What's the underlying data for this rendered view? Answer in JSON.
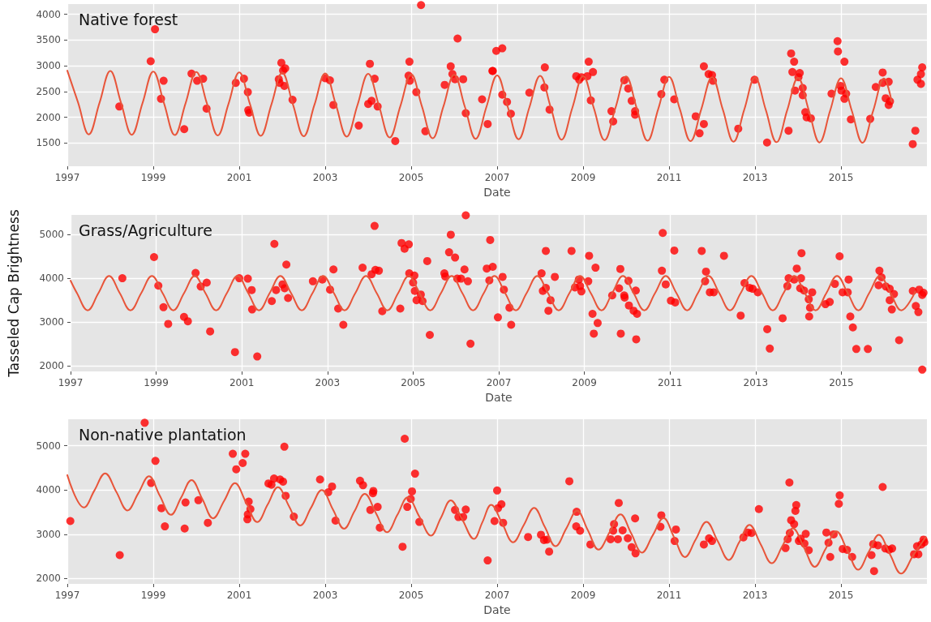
{
  "chart_data": [
    {
      "type": "scatter",
      "title": "Native forest",
      "xlabel": "Date",
      "xlim": [
        1997,
        2017
      ],
      "xticks": [
        1997,
        1999,
        2001,
        2003,
        2005,
        2007,
        2009,
        2011,
        2013,
        2015
      ],
      "ylim": [
        1050,
        4200
      ],
      "yticks": [
        1500,
        2000,
        2500,
        3000,
        3500,
        4000
      ],
      "grid": true,
      "series": [
        {
          "marker": "circle",
          "color": "#ff0000",
          "x": [
            1998.21,
            1998.94,
            1999.04,
            1999.24,
            1999.18,
            1999.72,
            1999.89,
            2000.02,
            2000.16,
            2000.24,
            2000.92,
            2001.11,
            2001.2,
            2001.21,
            2001.23,
            2001.92,
            2001.94,
            2001.98,
            2002.02,
            2002.07,
            2002.05,
            2002.24,
            2003.0,
            2003.11,
            2003.19,
            2003.78,
            2004.0,
            2004.08,
            2004.04,
            2004.15,
            2004.22,
            2004.63,
            2004.96,
            2004.94,
            2004.97,
            2005.12,
            2005.23,
            2005.33,
            2005.78,
            2005.92,
            2005.96,
            2006.02,
            2006.08,
            2006.21,
            2006.27,
            2006.65,
            2006.78,
            2006.89,
            2006.98,
            2007.12,
            2006.9,
            2007.12,
            2007.23,
            2007.32,
            2007.75,
            2008.11,
            2008.1,
            2008.22,
            2008.84,
            2008.91,
            2008.96,
            2009.1,
            2009.13,
            2009.23,
            2009.18,
            2009.66,
            2009.7,
            2009.96,
            2010.05,
            2010.13,
            2010.21,
            2010.21,
            2010.82,
            2010.89,
            2011.12,
            2011.62,
            2011.71,
            2011.81,
            2011.81,
            2011.92,
            2012.0,
            2012.02,
            2012.61,
            2012.99,
            2013.28,
            2013.78,
            2013.84,
            2013.91,
            2013.87,
            2014.04,
            2014.01,
            2013.93,
            2014.11,
            2014.11,
            2014.17,
            2014.2,
            2014.3,
            2014.92,
            2014.93,
            2015.08,
            2014.78,
            2014.99,
            2015.01,
            2015.12,
            2015.08,
            2015.23,
            2015.68,
            2015.81,
            2015.97,
            2015.97,
            2016.11,
            2016.04,
            2016.14,
            2016.11,
            2016.73,
            2016.67,
            2016.78,
            2016.86,
            2016.86,
            2016.89
          ],
          "values": [
            2210,
            3090,
            3710,
            2710,
            2360,
            1770,
            2850,
            2710,
            2750,
            2170,
            2670,
            2750,
            2490,
            2140,
            2090,
            2740,
            2670,
            3060,
            2910,
            2950,
            2610,
            2340,
            2760,
            2720,
            2240,
            1840,
            2260,
            2320,
            3040,
            2750,
            2210,
            1540,
            3080,
            2810,
            2710,
            2490,
            4180,
            1730,
            2630,
            2990,
            2840,
            2740,
            3530,
            2740,
            2080,
            2350,
            1870,
            2900,
            3290,
            3340,
            2900,
            2440,
            2300,
            2070,
            2480,
            2970,
            2580,
            2150,
            2800,
            2730,
            2780,
            2800,
            3080,
            2880,
            2330,
            2120,
            1920,
            2720,
            2560,
            2320,
            2120,
            2050,
            2450,
            2730,
            2350,
            2020,
            1690,
            1870,
            2990,
            2840,
            2820,
            2710,
            1780,
            2730,
            1510,
            1740,
            3240,
            3080,
            2880,
            2860,
            2780,
            2520,
            2570,
            2430,
            2100,
            2000,
            1980,
            3480,
            3280,
            3080,
            2460,
            2610,
            2520,
            2460,
            2360,
            1960,
            1970,
            2590,
            2870,
            2670,
            2690,
            2370,
            2310,
            2240,
            1740,
            1480,
            2730,
            2840,
            2650,
            2970
          ]
        },
        {
          "type": "line",
          "marker": "none",
          "line_style": "solid",
          "color": "#e8553a",
          "x": [
            1997,
            1997.25,
            1997.5,
            1997.75,
            1998,
            1998.25,
            1998.5,
            1998.75,
            1999,
            1999.25,
            1999.5,
            1999.75,
            2000,
            2000.25,
            2000.5,
            2000.75,
            2001,
            2001.25,
            2001.5,
            2001.75,
            2002,
            2002.25,
            2002.5,
            2002.75,
            2003,
            2003.25,
            2003.5,
            2003.75,
            2004,
            2004.25,
            2004.5,
            2004.75,
            2005,
            2005.25,
            2005.5,
            2005.75,
            2006,
            2006.25,
            2006.5,
            2006.75,
            2007,
            2007.25,
            2007.5,
            2007.75,
            2008,
            2008.25,
            2008.5,
            2008.75,
            2009,
            2009.25,
            2009.5,
            2009.75,
            2010,
            2010.25,
            2010.5,
            2010.75,
            2011,
            2011.25,
            2011.5,
            2011.75,
            2012,
            2012.25,
            2012.5,
            2012.75,
            2013,
            2013.25,
            2013.5,
            2013.75,
            2014,
            2014.25,
            2014.5,
            2014.75,
            2015,
            2015.25,
            2015.5,
            2015.75,
            2016,
            2016.18
          ],
          "values": [
            2907,
            2289,
            1670,
            2285,
            2900,
            2281,
            1662,
            2276,
            2890,
            2273,
            1655,
            2269,
            2882,
            2265,
            1648,
            2261,
            2874,
            2257,
            1640,
            2253,
            2865,
            2249,
            1632,
            2244,
            2855,
            2240,
            1625,
            2235,
            2845,
            2227,
            1608,
            2222,
            2835,
            2214,
            1592,
            2209,
            2825,
            2204,
            1583,
            2199,
            2815,
            2195,
            1575,
            2192,
            2808,
            2187,
            1566,
            2184,
            2801,
            2179,
            1557,
            2176,
            2794,
            2171,
            1547,
            2167,
            2787,
            2162,
            1537,
            2159,
            2780,
            2154,
            1527,
            2151,
            2774,
            2146,
            1517,
            2142,
            2767,
            2140,
            1512,
            2136,
            2760,
            2133,
            1506,
            2131,
            2755,
            2300
          ]
        }
      ]
    },
    {
      "type": "scatter",
      "title": "Grass/Agriculture",
      "xlabel": "Date",
      "ylabel": "Tasseled Cap Brightness",
      "xlim": [
        1997,
        2017
      ],
      "xticks": [
        1997,
        1999,
        2001,
        2003,
        2005,
        2007,
        2009,
        2011,
        2013,
        2015
      ],
      "ylim": [
        1880,
        5440
      ],
      "yticks": [
        2000,
        3000,
        4000,
        5000
      ],
      "grid": true,
      "series": [
        {
          "marker": "circle",
          "color": "#ff0000",
          "x": [
            1998.21,
            1998.95,
            1999.05,
            1999.17,
            1999.28,
            1999.65,
            1999.74,
            1999.92,
            2000.04,
            2000.18,
            2000.26,
            2000.84,
            2000.94,
            2001.14,
            2001.23,
            2001.24,
            2001.36,
            2001.7,
            2001.76,
            2001.8,
            2001.95,
            2002.0,
            2002.04,
            2002.08,
            2002.66,
            2002.88,
            2003.06,
            2003.14,
            2003.25,
            2003.37,
            2003.82,
            2004.03,
            2004.1,
            2004.12,
            2004.2,
            2004.28,
            2004.7,
            2004.73,
            2004.8,
            2004.9,
            2004.91,
            2005.03,
            2005.0,
            2005.04,
            2005.08,
            2005.18,
            2005.22,
            2005.33,
            2005.39,
            2005.73,
            2005.75,
            2005.84,
            2005.88,
            2005.98,
            2006.03,
            2006.12,
            2006.2,
            2006.23,
            2006.28,
            2006.34,
            2006.72,
            2006.8,
            2006.86,
            2006.78,
            2006.98,
            2007.09,
            2007.12,
            2007.25,
            2007.29,
            2008.0,
            2008.1,
            2008.03,
            2008.1,
            2008.16,
            2008.21,
            2008.31,
            2008.7,
            2008.78,
            2008.87,
            2008.9,
            2008.93,
            2009.11,
            2009.09,
            2009.19,
            2009.26,
            2009.22,
            2009.31,
            2009.65,
            2009.81,
            2009.84,
            2009.85,
            2009.93,
            2009.94,
            2010.03,
            2010.04,
            2010.15,
            2010.2,
            2010.21,
            2010.23,
            2010.81,
            2010.83,
            2010.9,
            2011.02,
            2011.1,
            2011.12,
            2011.74,
            2011.84,
            2011.82,
            2011.93,
            2012.02,
            2012.26,
            2012.65,
            2012.74,
            2012.86,
            2012.93,
            2013.05,
            2013.27,
            2013.33,
            2013.63,
            2013.77,
            2013.74,
            2013.9,
            2013.96,
            2014.06,
            2014.07,
            2014.04,
            2014.13,
            2014.24,
            2014.27,
            2014.25,
            2014.32,
            2014.63,
            2014.73,
            2014.85,
            2014.96,
            2015.03,
            2015.15,
            2015.17,
            2015.21,
            2015.27,
            2015.35,
            2015.62,
            2015.87,
            2015.89,
            2015.94,
            2016.04,
            2016.13,
            2016.23,
            2016.13,
            2016.18,
            2016.35,
            2016.67,
            2016.74,
            2016.8,
            2016.82,
            2016.89,
            2016.92,
            2016.89
          ],
          "values": [
            4000,
            4480,
            3830,
            3340,
            2960,
            3120,
            3020,
            4120,
            3810,
            3900,
            2790,
            2320,
            4000,
            3990,
            3730,
            3290,
            2220,
            3480,
            4780,
            3730,
            3860,
            3770,
            4310,
            3550,
            3930,
            3970,
            3740,
            4200,
            3310,
            2940,
            4240,
            4090,
            5190,
            4190,
            4170,
            3250,
            3310,
            4800,
            4670,
            4770,
            4110,
            4060,
            3900,
            3710,
            3500,
            3630,
            3480,
            4390,
            2710,
            4110,
            4040,
            4590,
            4990,
            4470,
            3990,
            3990,
            4200,
            5430,
            3930,
            2510,
            4220,
            4870,
            4260,
            3950,
            3110,
            4030,
            3740,
            3330,
            2940,
            4110,
            4620,
            3710,
            3780,
            3260,
            3500,
            4030,
            4620,
            3790,
            3970,
            3820,
            3700,
            4510,
            3930,
            3190,
            4240,
            2740,
            2980,
            3610,
            3770,
            4210,
            2740,
            3610,
            3560,
            3940,
            3380,
            3260,
            3720,
            2610,
            3190,
            4170,
            5030,
            3860,
            3490,
            4630,
            3450,
            4620,
            4150,
            3930,
            3680,
            3680,
            4510,
            3150,
            3890,
            3780,
            3760,
            3680,
            2840,
            2400,
            3090,
            4000,
            3820,
            3970,
            4220,
            4000,
            4570,
            3770,
            3720,
            3520,
            3330,
            3130,
            3680,
            3410,
            3460,
            3870,
            4500,
            3680,
            3680,
            3970,
            3130,
            2880,
            2390,
            2390,
            3840,
            4170,
            4020,
            3810,
            3760,
            3640,
            3500,
            3290,
            2590,
            3710,
            3370,
            3230,
            3740,
            3620,
            3670,
            1920
          ]
        },
        {
          "type": "line",
          "marker": "none",
          "line_style": "solid",
          "color": "#e8553a",
          "x": [
            1997,
            1997.15,
            1997.4,
            1997.65,
            1997.9,
            1998.15,
            1998.4,
            1998.65,
            1998.9,
            1999.15,
            1999.4,
            1999.65,
            1999.9,
            2000.15,
            2000.4,
            2000.65,
            2000.9,
            2001.15,
            2001.4,
            2001.65,
            2001.9,
            2002.15,
            2002.4,
            2002.65,
            2002.9,
            2003.15,
            2003.4,
            2003.65,
            2003.9,
            2004.15,
            2004.4,
            2004.65,
            2004.9,
            2005.15,
            2005.4,
            2005.65,
            2005.9,
            2006.15,
            2006.4,
            2006.65,
            2006.9,
            2007.15,
            2007.4,
            2007.65,
            2007.9,
            2008.15,
            2008.4,
            2008.65,
            2008.9,
            2009.15,
            2009.4,
            2009.65,
            2009.9,
            2010.15,
            2010.4,
            2010.65,
            2010.9,
            2011.15,
            2011.4,
            2011.65,
            2011.9,
            2012.15,
            2012.4,
            2012.65,
            2012.9,
            2013.15,
            2013.4,
            2013.65,
            2013.9,
            2014.15,
            2014.4,
            2014.65,
            2014.9,
            2015.15,
            2015.4,
            2015.65,
            2015.9,
            2016.15,
            2016.4,
            2016.73
          ],
          "values": [
            3945,
            3660,
            3270,
            3660,
            4050,
            3660,
            3270,
            3660,
            4050,
            3660,
            3270,
            3660,
            4050,
            3660,
            3270,
            3660,
            4050,
            3660,
            3270,
            3660,
            4050,
            3660,
            3270,
            3660,
            4050,
            3660,
            3270,
            3660,
            4050,
            3660,
            3270,
            3660,
            4050,
            3660,
            3270,
            3660,
            4050,
            3660,
            3270,
            3660,
            4050,
            3660,
            3270,
            3660,
            4050,
            3660,
            3270,
            3660,
            4050,
            3660,
            3270,
            3660,
            4050,
            3660,
            3270,
            3660,
            4050,
            3660,
            3270,
            3660,
            4050,
            3660,
            3270,
            3660,
            4050,
            3660,
            3270,
            3660,
            4050,
            3660,
            3270,
            3660,
            4050,
            3660,
            3270,
            3660,
            4050,
            3660,
            3270,
            3700
          ]
        }
      ]
    },
    {
      "type": "scatter",
      "title": "Non-native plantation",
      "xlabel": "Date",
      "xlim": [
        1997,
        2017
      ],
      "xticks": [
        1997,
        1999,
        2001,
        2003,
        2005,
        2007,
        2009,
        2011,
        2013,
        2015
      ],
      "ylim": [
        1880,
        5600
      ],
      "yticks": [
        2000,
        3000,
        4000,
        5000
      ],
      "grid": true,
      "series": [
        {
          "marker": "circle",
          "color": "#ff0000",
          "x": [
            1997.07,
            1998.22,
            1998.8,
            1998.95,
            1999.05,
            1999.19,
            1999.27,
            1999.73,
            1999.75,
            2000.05,
            2000.27,
            2000.85,
            2000.93,
            2001.08,
            2001.14,
            2001.22,
            2001.26,
            2001.2,
            2001.19,
            2001.68,
            2001.75,
            2001.81,
            2001.95,
            2002.02,
            2002.05,
            2002.08,
            2002.27,
            2002.88,
            2003.07,
            2003.16,
            2003.24,
            2003.81,
            2003.88,
            2004.12,
            2004.11,
            2004.05,
            2004.22,
            2004.27,
            2004.8,
            2004.85,
            2004.91,
            2004.99,
            2005.02,
            2005.09,
            2005.19,
            2006.02,
            2006.1,
            2006.21,
            2006.27,
            2006.78,
            2006.94,
            2007.0,
            2007.02,
            2007.1,
            2007.14,
            2007.72,
            2008.02,
            2008.09,
            2008.16,
            2008.21,
            2008.68,
            2008.85,
            2008.84,
            2008.93,
            2009.17,
            2009.64,
            2009.7,
            2009.72,
            2009.81,
            2009.83,
            2009.92,
            2010.04,
            2010.13,
            2010.21,
            2010.22,
            2010.8,
            2010.82,
            2011.13,
            2011.16,
            2011.81,
            2011.93,
            2012.0,
            2012.73,
            2012.83,
            2012.92,
            2013.09,
            2013.71,
            2013.76,
            2013.8,
            2013.81,
            2013.84,
            2013.91,
            2013.94,
            2013.96,
            2014.02,
            2014.06,
            2014.15,
            2014.18,
            2014.25,
            2014.66,
            2014.71,
            2014.75,
            2014.83,
            2014.95,
            2014.97,
            2015.04,
            2015.14,
            2015.26,
            2015.71,
            2015.75,
            2015.77,
            2015.86,
            2015.97,
            2016.03,
            2016.12,
            2016.19,
            2016.7,
            2016.77,
            2016.8,
            2016.87,
            2016.92,
            2016.94
          ],
          "values": [
            3300,
            2530,
            5520,
            4160,
            4660,
            3590,
            3180,
            3130,
            3720,
            3770,
            3260,
            4820,
            4470,
            4610,
            4820,
            3740,
            3570,
            3450,
            3340,
            4150,
            4120,
            4260,
            4240,
            4190,
            4980,
            3870,
            3400,
            4240,
            3950,
            4080,
            3310,
            4210,
            4110,
            3980,
            3930,
            3550,
            3620,
            3150,
            2720,
            5160,
            3620,
            3800,
            3970,
            4370,
            3280,
            3550,
            3390,
            3390,
            3560,
            2410,
            3300,
            3990,
            3590,
            3680,
            3260,
            2940,
            2990,
            2870,
            2880,
            2610,
            4200,
            3510,
            3180,
            3080,
            2770,
            2890,
            3080,
            3230,
            2890,
            3710,
            3090,
            2910,
            2710,
            3360,
            2570,
            3170,
            3430,
            2850,
            3110,
            2770,
            2910,
            2850,
            2930,
            3040,
            3030,
            3570,
            2690,
            2890,
            4170,
            3030,
            3320,
            3230,
            3530,
            3660,
            2850,
            2900,
            2790,
            3010,
            2640,
            3040,
            2810,
            2490,
            3000,
            3690,
            3880,
            2670,
            2650,
            2490,
            2530,
            2780,
            2170,
            2750,
            4070,
            2680,
            2650,
            2680,
            2550,
            2730,
            2550,
            2770,
            2880,
            2820
          ]
        },
        {
          "type": "line",
          "marker": "none",
          "line_style": "solid",
          "color": "#e8553a",
          "x": [
            1997.0,
            1997.39,
            1997.63,
            1997.88,
            1998.14,
            1998.4,
            1998.65,
            1998.9,
            1999.15,
            1999.41,
            1999.65,
            1999.89,
            2000.14,
            2000.39,
            2000.65,
            2000.9,
            2001.16,
            2001.42,
            2001.66,
            2001.9,
            2002.16,
            2002.42,
            2002.67,
            2002.92,
            2003.18,
            2003.44,
            2003.68,
            2003.92,
            2004.18,
            2004.44,
            2004.68,
            2004.92,
            2005.19,
            2005.46,
            2005.69,
            2005.92,
            2006.19,
            2006.46,
            2006.66,
            2006.86,
            2007.12,
            2007.37,
            2007.62,
            2007.86,
            2008.11,
            2008.36,
            2008.61,
            2008.86,
            2009.11,
            2009.36,
            2009.62,
            2009.87,
            2010.12,
            2010.37,
            2010.62,
            2010.87,
            2011.12,
            2011.37,
            2011.62,
            2011.87,
            2012.13,
            2012.39,
            2012.63,
            2012.87,
            2013.13,
            2013.39,
            2013.64,
            2013.88,
            2014.14,
            2014.39,
            2014.64,
            2014.89,
            2015.15,
            2015.4,
            2015.64,
            2015.88,
            2016.14,
            2016.4,
            2016.68,
            2016.97
          ],
          "values": [
            4338,
            3605,
            3990,
            4378,
            3960,
            3540,
            3925,
            4312,
            3877,
            3441,
            3834,
            4227,
            3800,
            3362,
            3760,
            4155,
            3716,
            3277,
            3670,
            4063,
            3630,
            3199,
            3600,
            4000,
            3563,
            3127,
            3520,
            3913,
            3480,
            3048,
            3441,
            3834,
            3400,
            2970,
            3370,
            3769,
            3333,
            2897,
            3280,
            3667,
            3243,
            2820,
            3210,
            3600,
            3166,
            2733,
            3133,
            3533,
            3093,
            2653,
            3053,
            3453,
            3020,
            2587,
            2977,
            3367,
            2927,
            2487,
            2883,
            3280,
            2850,
            2420,
            2817,
            3213,
            2780,
            2347,
            2740,
            3133,
            2700,
            2267,
            2667,
            3067,
            2633,
            2200,
            2593,
            2987,
            2550,
            2113,
            2523,
            2933
          ]
        }
      ]
    }
  ]
}
